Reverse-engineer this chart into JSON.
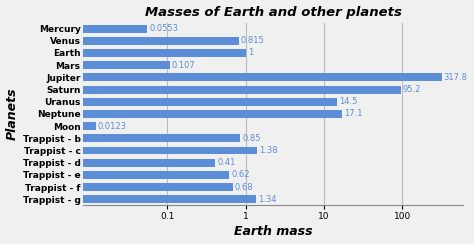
{
  "title": "Masses of Earth and other planets",
  "xlabel": "Earth mass",
  "ylabel": "Planets",
  "planets": [
    "Mercury",
    "Venus",
    "Earth",
    "Mars",
    "Jupiter",
    "Saturn",
    "Uranus",
    "Neptune",
    "Moon",
    "Trappist - b",
    "Trappist - c",
    "Trappist - d",
    "Trappist - e",
    "Trappist - f",
    "Trappist - g"
  ],
  "masses": [
    0.0553,
    0.815,
    1,
    0.107,
    317.8,
    95.2,
    14.5,
    17.1,
    0.0123,
    0.85,
    1.38,
    0.41,
    0.62,
    0.68,
    1.34
  ],
  "labels": [
    "0.0553",
    "0.815",
    "1",
    "0.107",
    "317.8",
    "95.2",
    "14.5",
    "17.1",
    "0.0123",
    "0.85",
    "1.38",
    "0.41",
    "0.62",
    "0.68",
    "1.34"
  ],
  "bar_color": "#5b8ed6",
  "bar_height": 0.65,
  "xlim_left": 0.0085,
  "xlim_right": 600,
  "background_color": "#f0f0f0",
  "title_fontsize": 9.5,
  "axis_label_fontsize": 9,
  "tick_fontsize": 6.5,
  "label_fontsize": 6,
  "label_color": "#5b8ed6",
  "grid_color": "#bbbbbb",
  "xticks": [
    0.1,
    1,
    10,
    100
  ],
  "xtick_labels": [
    "0.1",
    "1",
    "10",
    "100"
  ]
}
